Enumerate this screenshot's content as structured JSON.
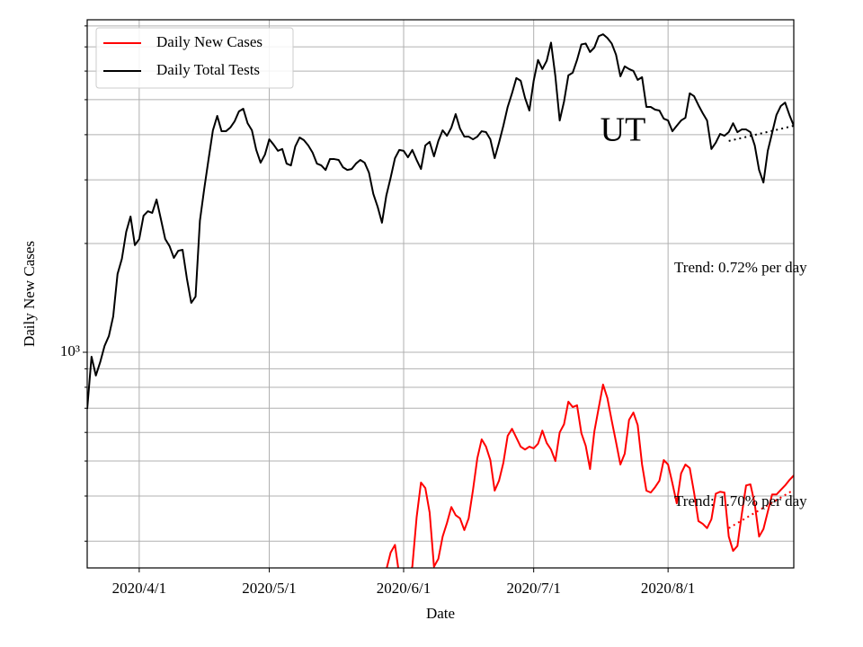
{
  "chart_data": {
    "type": "line",
    "annotation": "UT",
    "x_label": "Date",
    "y_label": "Daily New Cases",
    "log_y": true,
    "grid": true,
    "legend": "upper left",
    "xlim": [
      "2020-03-20",
      "2020-08-30"
    ],
    "xticks": [
      {
        "value": "2020-04-01",
        "label": "2020/4/1"
      },
      {
        "value": "2020-05-01",
        "label": "2020/5/1"
      },
      {
        "value": "2020-06-01",
        "label": "2020/6/1"
      },
      {
        "value": "2020-07-01",
        "label": "2020/7/1"
      },
      {
        "value": "2020-08-01",
        "label": "2020/8/1"
      }
    ],
    "ylim": [
      253,
      8320
    ],
    "yticks": [
      {
        "value": 1000,
        "label": "10³"
      }
    ],
    "yticks_minor": [
      300,
      400,
      500,
      600,
      700,
      800,
      900,
      2000,
      3000,
      4000,
      5000,
      6000,
      7000,
      8000
    ],
    "x": [
      "2020-03-20",
      "2020-03-21",
      "2020-03-22",
      "2020-03-23",
      "2020-03-24",
      "2020-03-25",
      "2020-03-26",
      "2020-03-27",
      "2020-03-28",
      "2020-03-29",
      "2020-03-30",
      "2020-03-31",
      "2020-04-01",
      "2020-04-02",
      "2020-04-03",
      "2020-04-04",
      "2020-04-05",
      "2020-04-06",
      "2020-04-07",
      "2020-04-08",
      "2020-04-09",
      "2020-04-10",
      "2020-04-11",
      "2020-04-12",
      "2020-04-13",
      "2020-04-14",
      "2020-04-15",
      "2020-04-16",
      "2020-04-17",
      "2020-04-18",
      "2020-04-19",
      "2020-04-20",
      "2020-04-21",
      "2020-04-22",
      "2020-04-23",
      "2020-04-24",
      "2020-04-25",
      "2020-04-26",
      "2020-04-27",
      "2020-04-28",
      "2020-04-29",
      "2020-04-30",
      "2020-05-01",
      "2020-05-02",
      "2020-05-03",
      "2020-05-04",
      "2020-05-05",
      "2020-05-06",
      "2020-05-07",
      "2020-05-08",
      "2020-05-09",
      "2020-05-10",
      "2020-05-11",
      "2020-05-12",
      "2020-05-13",
      "2020-05-14",
      "2020-05-15",
      "2020-05-16",
      "2020-05-17",
      "2020-05-18",
      "2020-05-19",
      "2020-05-20",
      "2020-05-21",
      "2020-05-22",
      "2020-05-23",
      "2020-05-24",
      "2020-05-25",
      "2020-05-26",
      "2020-05-27",
      "2020-05-28",
      "2020-05-29",
      "2020-05-30",
      "2020-05-31",
      "2020-06-01",
      "2020-06-02",
      "2020-06-03",
      "2020-06-04",
      "2020-06-05",
      "2020-06-06",
      "2020-06-07",
      "2020-06-08",
      "2020-06-09",
      "2020-06-10",
      "2020-06-11",
      "2020-06-12",
      "2020-06-13",
      "2020-06-14",
      "2020-06-15",
      "2020-06-16",
      "2020-06-17",
      "2020-06-18",
      "2020-06-19",
      "2020-06-20",
      "2020-06-21",
      "2020-06-22",
      "2020-06-23",
      "2020-06-24",
      "2020-06-25",
      "2020-06-26",
      "2020-06-27",
      "2020-06-28",
      "2020-06-29",
      "2020-06-30",
      "2020-07-01",
      "2020-07-02",
      "2020-07-03",
      "2020-07-04",
      "2020-07-05",
      "2020-07-06",
      "2020-07-07",
      "2020-07-08",
      "2020-07-09",
      "2020-07-10",
      "2020-07-11",
      "2020-07-12",
      "2020-07-13",
      "2020-07-14",
      "2020-07-15",
      "2020-07-16",
      "2020-07-17",
      "2020-07-18",
      "2020-07-19",
      "2020-07-20",
      "2020-07-21",
      "2020-07-22",
      "2020-07-23",
      "2020-07-24",
      "2020-07-25",
      "2020-07-26",
      "2020-07-27",
      "2020-07-28",
      "2020-07-29",
      "2020-07-30",
      "2020-07-31",
      "2020-08-01",
      "2020-08-02",
      "2020-08-03",
      "2020-08-04",
      "2020-08-05",
      "2020-08-06",
      "2020-08-07",
      "2020-08-08",
      "2020-08-09",
      "2020-08-10",
      "2020-08-11",
      "2020-08-12",
      "2020-08-13",
      "2020-08-14",
      "2020-08-15",
      "2020-08-16",
      "2020-08-17",
      "2020-08-18",
      "2020-08-19",
      "2020-08-20",
      "2020-08-21",
      "2020-08-22",
      "2020-08-23",
      "2020-08-24",
      "2020-08-25",
      "2020-08-26",
      "2020-08-27",
      "2020-08-28",
      "2020-08-29",
      "2020-08-30"
    ],
    "series": [
      {
        "name": "Daily New Cases",
        "color": "#ff0000",
        "values": [
          null,
          null,
          null,
          null,
          null,
          null,
          null,
          null,
          null,
          null,
          null,
          null,
          null,
          null,
          null,
          null,
          null,
          null,
          null,
          null,
          null,
          null,
          null,
          null,
          null,
          null,
          null,
          null,
          null,
          null,
          null,
          null,
          null,
          null,
          null,
          null,
          null,
          null,
          null,
          null,
          null,
          null,
          null,
          null,
          null,
          null,
          null,
          null,
          null,
          null,
          null,
          null,
          null,
          null,
          null,
          null,
          null,
          null,
          null,
          null,
          null,
          null,
          null,
          null,
          null,
          null,
          null,
          null,
          null,
          250,
          279,
          293,
          241,
          228,
          241,
          255,
          350,
          436,
          421,
          360,
          255,
          268,
          309,
          337,
          373,
          354,
          347,
          322,
          347,
          416,
          509,
          574,
          548,
          503,
          414,
          441,
          494,
          587,
          614,
          580,
          548,
          538,
          548,
          542,
          558,
          607,
          561,
          538,
          500,
          600,
          632,
          730,
          705,
          713,
          597,
          551,
          475,
          604,
          702,
          814,
          747,
          647,
          564,
          489,
          524,
          650,
          681,
          628,
          489,
          414,
          409,
          423,
          441,
          503,
          489,
          434,
          382,
          462,
          489,
          478,
          409,
          341,
          335,
          326,
          345,
          406,
          411,
          409,
          309,
          282,
          291,
          356,
          428,
          431,
          380,
          309,
          324,
          362,
          404,
          404,
          416,
          428,
          443,
          456
        ]
      },
      {
        "name": "Daily Total Tests",
        "color": "#000000",
        "values": [
          697,
          972,
          862,
          939,
          1041,
          1109,
          1257,
          1646,
          1814,
          2154,
          2375,
          1979,
          2057,
          2387,
          2456,
          2430,
          2646,
          2335,
          2057,
          1966,
          1824,
          1909,
          1921,
          1599,
          1370,
          1426,
          2310,
          2835,
          3424,
          4113,
          4508,
          4089,
          4089,
          4184,
          4354,
          4640,
          4720,
          4303,
          4113,
          3630,
          3346,
          3523,
          3884,
          3755,
          3609,
          3651,
          3327,
          3289,
          3712,
          3929,
          3862,
          3734,
          3567,
          3327,
          3289,
          3195,
          3424,
          3424,
          3405,
          3251,
          3195,
          3214,
          3327,
          3405,
          3346,
          3141,
          2744,
          2528,
          2283,
          2712,
          3042,
          3444,
          3630,
          3609,
          3464,
          3630,
          3405,
          3214,
          3734,
          3822,
          3484,
          3843,
          4113,
          3973,
          4184,
          4561,
          4159,
          3951,
          3951,
          3884,
          3951,
          4089,
          4066,
          3884,
          3444,
          3801,
          4233,
          4774,
          5207,
          5738,
          5640,
          5059,
          4666,
          5640,
          6440,
          6078,
          6404,
          7193,
          5803,
          4379,
          4942,
          5837,
          5937,
          6440,
          7111,
          7151,
          6775,
          6972,
          7495,
          7584,
          7409,
          7151,
          6657,
          5803,
          6181,
          6078,
          6006,
          5672,
          5770,
          4774,
          4774,
          4693,
          4666,
          4430,
          4379,
          4089,
          4233,
          4379,
          4456,
          5207,
          5112,
          4830,
          4587,
          4379,
          3651,
          3801,
          4020,
          3973,
          4066,
          4303,
          4066,
          4136,
          4136,
          4066,
          3734,
          3195,
          2949,
          3609,
          4043,
          4535,
          4801,
          4908,
          4535,
          4233
        ]
      }
    ],
    "trends": [
      {
        "label": "Trend: 0.72% per day",
        "color": "#000000",
        "x": [
          "2020-08-15",
          "2020-08-30"
        ],
        "values": [
          3843,
          4233
        ]
      },
      {
        "label": "Trend: 1.70% per day",
        "color": "#ff0000",
        "x": [
          "2020-08-15",
          "2020-08-30"
        ],
        "values": [
          326,
          416
        ]
      }
    ]
  }
}
